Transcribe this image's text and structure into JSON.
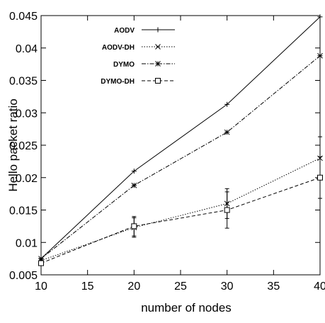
{
  "chart_data": {
    "type": "line",
    "xlabel": "number of nodes",
    "ylabel": "Hello packet ratio",
    "xlim": [
      10,
      40
    ],
    "ylim": [
      0.005,
      0.045
    ],
    "xticks": [
      "10",
      "15",
      "20",
      "25",
      "30",
      "35",
      "40"
    ],
    "yticks": [
      "0.005",
      "0.01",
      "0.015",
      "0.02",
      "0.025",
      "0.03",
      "0.035",
      "0.04",
      "0.045"
    ],
    "x": [
      10,
      20,
      30,
      40
    ],
    "legend_position": "top-left",
    "grid": false,
    "series": [
      {
        "name": "AODV",
        "values": [
          0.0075,
          0.021,
          0.0313,
          0.0448
        ],
        "marker": "plus",
        "dash": "solid",
        "color": "#000000"
      },
      {
        "name": "AODV-DH",
        "values": [
          0.0072,
          0.0123,
          0.016,
          0.023
        ],
        "marker": "x",
        "dash": "dotted",
        "color": "#000000",
        "error": [
          0,
          0.0015,
          0.0023,
          0.0033
        ]
      },
      {
        "name": "DYMO",
        "values": [
          0.0075,
          0.0188,
          0.027,
          0.0388
        ],
        "marker": "star",
        "dash": "dashdot",
        "color": "#000000"
      },
      {
        "name": "DYMO-DH",
        "values": [
          0.0068,
          0.0125,
          0.015,
          0.02
        ],
        "marker": "square",
        "dash": "dashed",
        "color": "#000000",
        "error": [
          0,
          0.0015,
          0.0028,
          0.0032
        ]
      }
    ]
  }
}
